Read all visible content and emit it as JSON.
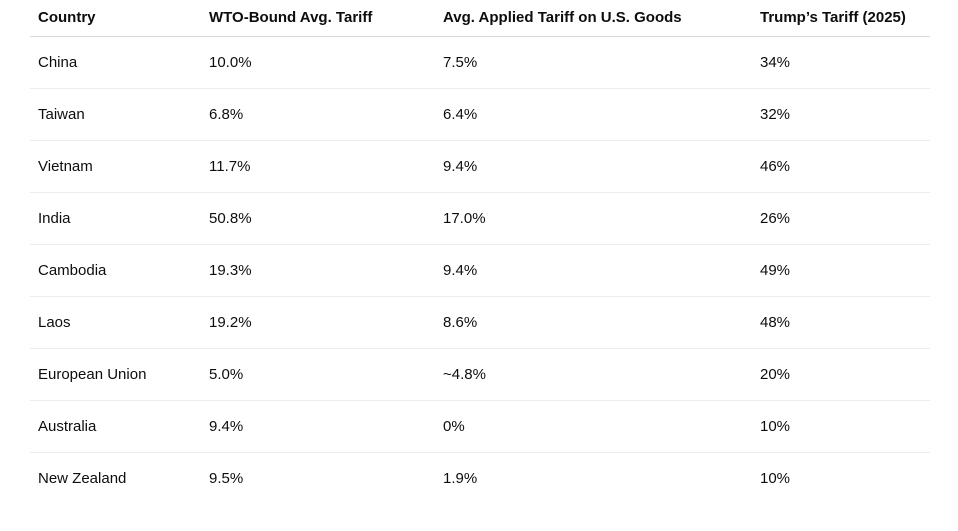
{
  "table": {
    "header": [
      "Country",
      "WTO-Bound Avg. Tariff",
      "Avg. Applied Tariff on U.S. Goods",
      "Trump’s Tariff (2025)"
    ],
    "rows": [
      [
        "China",
        "10.0%",
        "7.5%",
        "34%"
      ],
      [
        "Taiwan",
        "6.8%",
        "6.4%",
        "32%"
      ],
      [
        "Vietnam",
        "11.7%",
        "9.4%",
        "46%"
      ],
      [
        "India",
        "50.8%",
        "17.0%",
        "26%"
      ],
      [
        "Cambodia",
        "19.3%",
        "9.4%",
        "49%"
      ],
      [
        "Laos",
        "19.2%",
        "8.6%",
        "48%"
      ],
      [
        "European Union",
        "5.0%",
        "~4.8%",
        "20%"
      ],
      [
        "Australia",
        "9.4%",
        "0%",
        "10%"
      ],
      [
        "New Zealand",
        "9.5%",
        "1.9%",
        "10%"
      ]
    ]
  }
}
